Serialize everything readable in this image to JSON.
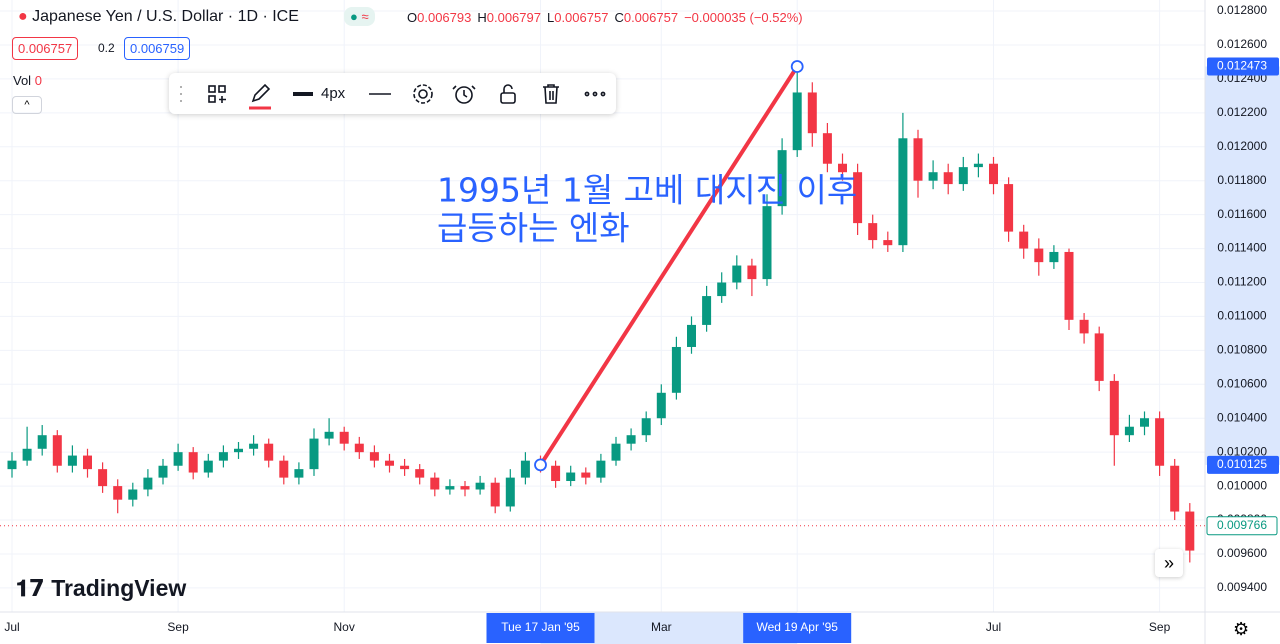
{
  "header": {
    "symbol": "Japanese Yen / U.S. Dollar · 1D · ICE",
    "ohlc": [
      {
        "key": "O",
        "value": "0.006793"
      },
      {
        "key": "H",
        "value": "0.006797"
      },
      {
        "key": "L",
        "value": "0.006757"
      },
      {
        "key": "C",
        "value": "0.006757"
      }
    ],
    "change": "−0.000035 (−0.52%)",
    "sell": "0.006757",
    "spread": "0.2",
    "buy": "0.006759",
    "volume_label": "Vol",
    "volume_value": "0"
  },
  "toolbar": {
    "width_label": "4px"
  },
  "logo": "TradingView",
  "chart_data": {
    "type": "candlestick",
    "up_color": "#089981",
    "down_color": "#f23645",
    "categories": [
      "Jul",
      null,
      null,
      null,
      null,
      null,
      null,
      null,
      null,
      null,
      null,
      "Sep",
      null,
      null,
      null,
      null,
      null,
      null,
      null,
      null,
      null,
      null,
      "Nov",
      null,
      null,
      null,
      null,
      null,
      null,
      null,
      null,
      null,
      null,
      null,
      null,
      "Tue 17 Jan '95",
      null,
      null,
      null,
      null,
      null,
      null,
      null,
      "Mar",
      null,
      null,
      null,
      null,
      null,
      null,
      null,
      null,
      "Wed 19 Apr '95",
      null,
      null,
      null,
      null,
      null,
      null,
      null,
      null,
      null,
      null,
      null,
      null,
      "Jul",
      null,
      null,
      null,
      null,
      null,
      null,
      null,
      null,
      null,
      null,
      "Sep",
      null,
      null
    ],
    "ohlc": [
      [
        0.0101,
        0.0102,
        0.01005,
        0.01015
      ],
      [
        0.01015,
        0.01035,
        0.01012,
        0.01022
      ],
      [
        0.01022,
        0.01036,
        0.01018,
        0.0103
      ],
      [
        0.0103,
        0.01033,
        0.01008,
        0.01012
      ],
      [
        0.01012,
        0.01024,
        0.01008,
        0.01018
      ],
      [
        0.01018,
        0.01022,
        0.01005,
        0.0101
      ],
      [
        0.0101,
        0.01014,
        0.00996,
        0.01
      ],
      [
        0.01,
        0.01004,
        0.00984,
        0.00992
      ],
      [
        0.00992,
        0.01002,
        0.00988,
        0.00998
      ],
      [
        0.00998,
        0.0101,
        0.00994,
        0.01005
      ],
      [
        0.01005,
        0.01016,
        0.01001,
        0.01012
      ],
      [
        0.01012,
        0.01025,
        0.01009,
        0.0102
      ],
      [
        0.0102,
        0.01023,
        0.01004,
        0.01008
      ],
      [
        0.01008,
        0.01019,
        0.01005,
        0.01015
      ],
      [
        0.01015,
        0.01024,
        0.01011,
        0.0102
      ],
      [
        0.0102,
        0.01026,
        0.01016,
        0.01022
      ],
      [
        0.01022,
        0.0103,
        0.01018,
        0.01025
      ],
      [
        0.01025,
        0.01028,
        0.01011,
        0.01015
      ],
      [
        0.01015,
        0.01018,
        0.01001,
        0.01005
      ],
      [
        0.01005,
        0.01014,
        0.01001,
        0.0101
      ],
      [
        0.0101,
        0.01034,
        0.01006,
        0.01028
      ],
      [
        0.01028,
        0.0104,
        0.01024,
        0.01032
      ],
      [
        0.01032,
        0.01035,
        0.01021,
        0.01025
      ],
      [
        0.01025,
        0.01029,
        0.01016,
        0.0102
      ],
      [
        0.0102,
        0.01024,
        0.01011,
        0.01015
      ],
      [
        0.01015,
        0.01019,
        0.01008,
        0.01012
      ],
      [
        0.01012,
        0.01016,
        0.01006,
        0.0101
      ],
      [
        0.0101,
        0.01013,
        0.01001,
        0.01005
      ],
      [
        0.01005,
        0.01008,
        0.00994,
        0.00998
      ],
      [
        0.00998,
        0.01004,
        0.00995,
        0.01
      ],
      [
        0.01,
        0.01003,
        0.00994,
        0.00998
      ],
      [
        0.00998,
        0.01006,
        0.00995,
        0.01002
      ],
      [
        0.01002,
        0.01005,
        0.00984,
        0.00988
      ],
      [
        0.00988,
        0.0101,
        0.00985,
        0.01005
      ],
      [
        0.01005,
        0.0102,
        0.01001,
        0.01015
      ],
      [
        0.01015,
        0.01018,
        0.01008,
        0.01012
      ],
      [
        0.01012,
        0.01015,
        0.00999,
        0.01003
      ],
      [
        0.01003,
        0.01012,
        0.01,
        0.01008
      ],
      [
        0.01008,
        0.01011,
        0.01001,
        0.01005
      ],
      [
        0.01005,
        0.01019,
        0.01002,
        0.01015
      ],
      [
        0.01015,
        0.01029,
        0.01012,
        0.01025
      ],
      [
        0.01025,
        0.01034,
        0.01021,
        0.0103
      ],
      [
        0.0103,
        0.01044,
        0.01026,
        0.0104
      ],
      [
        0.0104,
        0.0106,
        0.01036,
        0.01055
      ],
      [
        0.01055,
        0.01088,
        0.01051,
        0.01082
      ],
      [
        0.01082,
        0.011,
        0.01078,
        0.01095
      ],
      [
        0.01095,
        0.01118,
        0.01091,
        0.01112
      ],
      [
        0.01112,
        0.01126,
        0.01108,
        0.0112
      ],
      [
        0.0112,
        0.01136,
        0.01116,
        0.0113
      ],
      [
        0.0113,
        0.01134,
        0.01112,
        0.01122
      ],
      [
        0.01122,
        0.01172,
        0.01118,
        0.01165
      ],
      [
        0.01165,
        0.01205,
        0.0116,
        0.01198
      ],
      [
        0.01198,
        0.01247,
        0.01194,
        0.01232
      ],
      [
        0.01232,
        0.01238,
        0.012,
        0.01208
      ],
      [
        0.01208,
        0.01214,
        0.01185,
        0.0119
      ],
      [
        0.0119,
        0.01196,
        0.0118,
        0.01185
      ],
      [
        0.01185,
        0.0119,
        0.01148,
        0.01155
      ],
      [
        0.01155,
        0.0116,
        0.0114,
        0.01145
      ],
      [
        0.01145,
        0.0115,
        0.01138,
        0.01142
      ],
      [
        0.01142,
        0.0122,
        0.01138,
        0.01205
      ],
      [
        0.01205,
        0.0121,
        0.0117,
        0.0118
      ],
      [
        0.0118,
        0.01192,
        0.01175,
        0.01185
      ],
      [
        0.01185,
        0.0119,
        0.01172,
        0.01178
      ],
      [
        0.01178,
        0.01194,
        0.01174,
        0.01188
      ],
      [
        0.01188,
        0.01196,
        0.01182,
        0.0119
      ],
      [
        0.0119,
        0.01194,
        0.01172,
        0.01178
      ],
      [
        0.01178,
        0.01182,
        0.01144,
        0.0115
      ],
      [
        0.0115,
        0.01154,
        0.01134,
        0.0114
      ],
      [
        0.0114,
        0.01146,
        0.01124,
        0.01132
      ],
      [
        0.01132,
        0.01142,
        0.01128,
        0.01138
      ],
      [
        0.01138,
        0.0114,
        0.01092,
        0.01098
      ],
      [
        0.01098,
        0.01102,
        0.01084,
        0.0109
      ],
      [
        0.0109,
        0.01094,
        0.01056,
        0.01062
      ],
      [
        0.01062,
        0.01066,
        0.01012,
        0.0103
      ],
      [
        0.0103,
        0.01042,
        0.01026,
        0.01035
      ],
      [
        0.01035,
        0.01044,
        0.0103,
        0.0104
      ],
      [
        0.0104,
        0.01044,
        0.01006,
        0.01012
      ],
      [
        0.01012,
        0.01016,
        0.0098,
        0.00985
      ],
      [
        0.00985,
        0.0099,
        0.00955,
        0.00962
      ]
    ],
    "ylim": [
      0.009258,
      0.012865
    ],
    "yticks": [
      {
        "value": 0.0128,
        "label": "0.012800"
      },
      {
        "value": 0.0126,
        "label": "0.012600"
      },
      {
        "value": 0.0124,
        "label": "0.012400"
      },
      {
        "value": 0.0122,
        "label": "0.012200"
      },
      {
        "value": 0.012,
        "label": "0.012000"
      },
      {
        "value": 0.0118,
        "label": "0.011800"
      },
      {
        "value": 0.0116,
        "label": "0.011600"
      },
      {
        "value": 0.0114,
        "label": "0.011400"
      },
      {
        "value": 0.0112,
        "label": "0.011200"
      },
      {
        "value": 0.011,
        "label": "0.011000"
      },
      {
        "value": 0.0108,
        "label": "0.010800"
      },
      {
        "value": 0.0106,
        "label": "0.010600"
      },
      {
        "value": 0.0104,
        "label": "0.010400"
      },
      {
        "value": 0.0102,
        "label": "0.010200"
      },
      {
        "value": 0.01,
        "label": "0.010000"
      },
      {
        "value": 0.0098,
        "label": "0.009800"
      },
      {
        "value": 0.0096,
        "label": "0.009600"
      },
      {
        "value": 0.0094,
        "label": "0.009400"
      }
    ],
    "grid": true,
    "trend_line": {
      "color": "#f23645",
      "x": [
        35,
        52
      ],
      "y": [
        0.010125,
        0.012473
      ]
    },
    "last_price": 0.009766,
    "annotation": [
      "1995년 1월 고베 대지진 이후",
      "급등하는 엔화"
    ],
    "annotation_color": "#2962ff"
  }
}
